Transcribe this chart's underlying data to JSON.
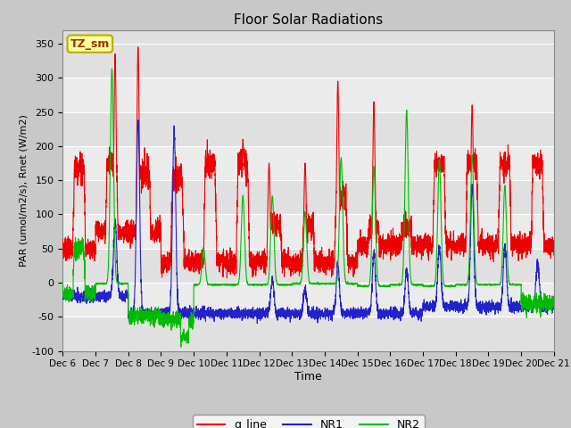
{
  "title": "Floor Solar Radiations",
  "xlabel": "Time",
  "ylabel": "PAR (umol/m2/s), Rnet (W/m2)",
  "ylim": [
    -100,
    370
  ],
  "yticks": [
    -100,
    -50,
    0,
    50,
    100,
    150,
    200,
    250,
    300,
    350
  ],
  "fig_bg_color": "#c8c8c8",
  "plot_bg_color": "#e0e0e0",
  "grid_band_color": "#ebebeb",
  "grid_line_color": "#ffffff",
  "text_box_label": "TZ_sm",
  "text_box_facecolor": "#ffff99",
  "text_box_edgecolor": "#bbaa00",
  "text_box_textcolor": "#993300",
  "legend_labels": [
    "q_line",
    "NR1",
    "NR2"
  ],
  "line_colors": [
    "#ee0000",
    "#2222cc",
    "#00bb00"
  ],
  "n_days": 15,
  "start_day": 6,
  "pts_per_day": 288
}
